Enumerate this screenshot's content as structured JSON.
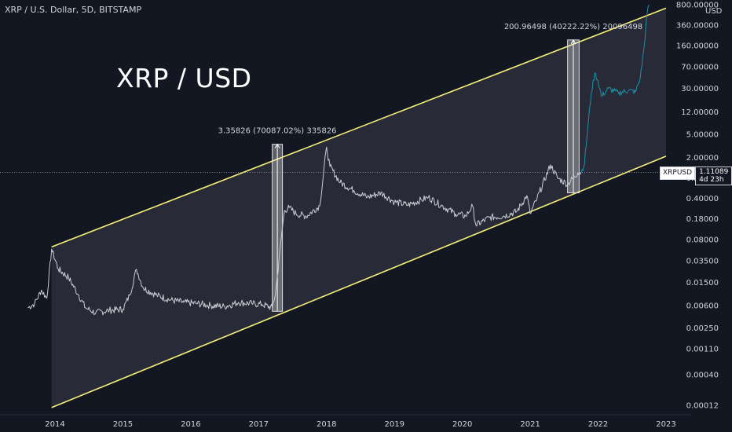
{
  "header": {
    "symbol_title": "XRP / U.S. Dollar, 5D, BITSTAMP",
    "big_title": "XRP / USD",
    "axis_unit": "USD"
  },
  "price_tag": {
    "symbol": "XRPUSD",
    "price": "1.11089",
    "countdown": "4d 23h"
  },
  "colors": {
    "background": "#131722",
    "channel_line": "#f5f078",
    "price_line": "#c9ccd3",
    "projection_line": "#1f8fa6",
    "channel_fill": "#3a3d48",
    "measure_box": "#9aa0aa"
  },
  "chart_data": {
    "type": "line",
    "title": "XRP / USD",
    "scale": "log",
    "ylim": [
      0.0001,
      800
    ],
    "xlim": [
      "2013.4",
      "2023.5"
    ],
    "y_ticks": [
      "800.00000",
      "360.00000",
      "160.00000",
      "70.00000",
      "30.00000",
      "12.00000",
      "5.00000",
      "2.00000",
      "0.90000",
      "0.40000",
      "0.18000",
      "0.08000",
      "0.03500",
      "0.01500",
      "0.00600",
      "0.00250",
      "0.00110",
      "0.00040",
      "0.00012"
    ],
    "x_ticks": [
      "2014",
      "2015",
      "2016",
      "2017",
      "2018",
      "2019",
      "2020",
      "2021",
      "2022",
      "2023"
    ],
    "current_price": 1.11089,
    "channel": {
      "upper": [
        [
          2013.95,
          0.06
        ],
        [
          2023.0,
          700
        ]
      ],
      "lower": [
        [
          2013.95,
          0.00011
        ],
        [
          2023.0,
          2.1
        ]
      ]
    },
    "series": [
      {
        "points": [
          [
            2013.6,
            0.0055
          ],
          [
            2013.7,
            0.0065
          ],
          [
            2013.8,
            0.011
          ],
          [
            2013.88,
            0.008
          ],
          [
            2013.95,
            0.055
          ],
          [
            2014.05,
            0.025
          ],
          [
            2014.2,
            0.018
          ],
          [
            2014.35,
            0.009
          ],
          [
            2014.45,
            0.0055
          ],
          [
            2014.6,
            0.0045
          ],
          [
            2014.8,
            0.005
          ],
          [
            2015.0,
            0.0052
          ],
          [
            2015.1,
            0.009
          ],
          [
            2015.2,
            0.025
          ],
          [
            2015.3,
            0.012
          ],
          [
            2015.5,
            0.009
          ],
          [
            2015.7,
            0.0075
          ],
          [
            2015.9,
            0.0068
          ],
          [
            2016.1,
            0.0065
          ],
          [
            2016.3,
            0.006
          ],
          [
            2016.5,
            0.0058
          ],
          [
            2016.7,
            0.0068
          ],
          [
            2016.9,
            0.0065
          ],
          [
            2017.05,
            0.0063
          ],
          [
            2017.2,
            0.0055
          ],
          [
            2017.25,
            0.01
          ],
          [
            2017.33,
            0.08
          ],
          [
            2017.38,
            0.25
          ],
          [
            2017.45,
            0.28
          ],
          [
            2017.55,
            0.22
          ],
          [
            2017.7,
            0.2
          ],
          [
            2017.9,
            0.3
          ],
          [
            2018.0,
            3.0
          ],
          [
            2018.05,
            1.4
          ],
          [
            2018.2,
            0.75
          ],
          [
            2018.4,
            0.55
          ],
          [
            2018.6,
            0.42
          ],
          [
            2018.8,
            0.5
          ],
          [
            2019.0,
            0.35
          ],
          [
            2019.2,
            0.31
          ],
          [
            2019.4,
            0.38
          ],
          [
            2019.5,
            0.42
          ],
          [
            2019.7,
            0.3
          ],
          [
            2019.9,
            0.22
          ],
          [
            2020.05,
            0.2
          ],
          [
            2020.15,
            0.3
          ],
          [
            2020.2,
            0.14
          ],
          [
            2020.4,
            0.19
          ],
          [
            2020.6,
            0.2
          ],
          [
            2020.8,
            0.24
          ],
          [
            2020.95,
            0.45
          ],
          [
            2021.0,
            0.22
          ],
          [
            2021.1,
            0.4
          ],
          [
            2021.3,
            1.5
          ],
          [
            2021.4,
            0.9
          ],
          [
            2021.55,
            0.7
          ],
          [
            2021.7,
            1.1
          ],
          [
            2021.75,
            1.11089
          ]
        ]
      },
      {
        "points": [
          [
            2021.75,
            1.11089
          ],
          [
            2021.8,
            1.6
          ],
          [
            2021.85,
            7
          ],
          [
            2021.9,
            25
          ],
          [
            2021.95,
            55
          ],
          [
            2022.0,
            40
          ],
          [
            2022.05,
            22
          ],
          [
            2022.15,
            30
          ],
          [
            2022.3,
            25
          ],
          [
            2022.45,
            28
          ],
          [
            2022.55,
            26
          ],
          [
            2022.62,
            45
          ],
          [
            2022.68,
            160
          ],
          [
            2022.72,
            560
          ],
          [
            2022.75,
            800
          ]
        ]
      }
    ],
    "measurements": [
      {
        "label": "3.35826 (70087.02%) 335826",
        "from": [
          2017.2,
          0.0048
        ],
        "to": [
          2017.35,
          3.36
        ]
      },
      {
        "label": "200.96498 (40222.22%) 20096498",
        "from": [
          2021.55,
          0.5
        ],
        "to": [
          2021.72,
          201
        ]
      }
    ]
  }
}
